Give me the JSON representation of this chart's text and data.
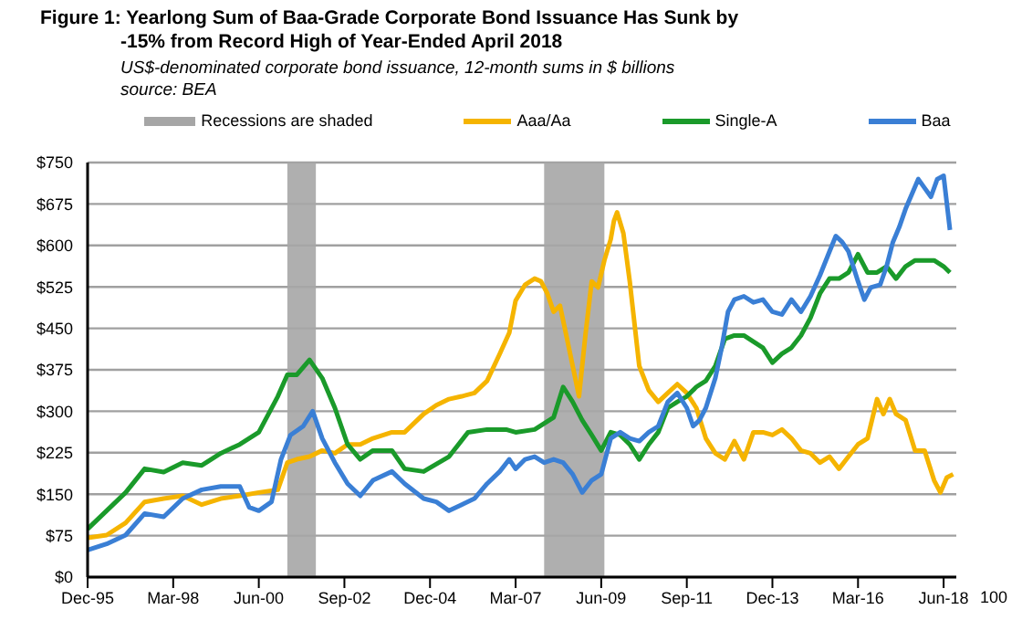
{
  "chart_data": {
    "type": "line",
    "title": "Figure 1: Yearlong Sum of Baa-Grade Corporate Bond Issuance Has Sunk by -15% from Record High of Year-Ended April 2018",
    "subtitle": "US$-denominated corporate bond issuance, 12-month sums in $ billions",
    "annotations": [
      "source: BEA",
      "100"
    ],
    "xlim": [
      "1995-12",
      "2018-10"
    ],
    "xticks": [
      {
        "value": "1995-12",
        "label": "Dec-95"
      },
      {
        "value": "1998-03",
        "label": "Mar-98"
      },
      {
        "value": "2000-06",
        "label": "Jun-00"
      },
      {
        "value": "2002-09",
        "label": "Sep-02"
      },
      {
        "value": "2004-12",
        "label": "Dec-04"
      },
      {
        "value": "2007-03",
        "label": "Mar-07"
      },
      {
        "value": "2009-06",
        "label": "Jun-09"
      },
      {
        "value": "2011-09",
        "label": "Sep-11"
      },
      {
        "value": "2013-12",
        "label": "Dec-13"
      },
      {
        "value": "2016-03",
        "label": "Mar-16"
      },
      {
        "value": "2018-06",
        "label": "Jun-18"
      }
    ],
    "ylim": [
      0,
      750
    ],
    "yticks": [
      {
        "value": 0,
        "label": "$0"
      },
      {
        "value": 75,
        "label": "$75"
      },
      {
        "value": 150,
        "label": "$150"
      },
      {
        "value": 225,
        "label": "$225"
      },
      {
        "value": 300,
        "label": "$300"
      },
      {
        "value": 375,
        "label": "$375"
      },
      {
        "value": 450,
        "label": "$450"
      },
      {
        "value": 525,
        "label": "$525"
      },
      {
        "value": 600,
        "label": "$600"
      },
      {
        "value": 675,
        "label": "$675"
      },
      {
        "value": 750,
        "label": "$750"
      }
    ],
    "grid": "y",
    "legend": "top",
    "marker": "none",
    "line_style": "solid",
    "bands": [
      {
        "axis": "x",
        "from": "2001-03",
        "to": "2001-12",
        "label": "Recessions are shaded",
        "color": "#a6a6a6"
      },
      {
        "axis": "x",
        "from": "2007-12",
        "to": "2009-07",
        "color": "#a6a6a6"
      }
    ],
    "series": [
      {
        "name": "Aaa/Aa",
        "color": "#f5b400",
        "x": [
          "1995-12",
          "1996-06",
          "1996-12",
          "1997-06",
          "1997-12",
          "1998-06",
          "1998-12",
          "1999-06",
          "1999-12",
          "2000-06",
          "2000-12",
          "2001-03",
          "2001-06",
          "2001-10",
          "2002-02",
          "2002-06",
          "2002-10",
          "2003-02",
          "2003-06",
          "2003-12",
          "2004-04",
          "2004-10",
          "2005-02",
          "2005-06",
          "2005-10",
          "2006-02",
          "2006-06",
          "2006-10",
          "2007-01",
          "2007-03",
          "2007-06",
          "2007-09",
          "2007-11",
          "2008-01",
          "2008-03",
          "2008-05",
          "2008-07",
          "2008-09",
          "2008-11",
          "2009-01",
          "2009-03",
          "2009-05",
          "2009-07",
          "2009-09",
          "2009-10",
          "2009-11",
          "2010-01",
          "2010-03",
          "2010-06",
          "2010-09",
          "2010-12",
          "2011-03",
          "2011-06",
          "2011-09",
          "2011-12",
          "2012-03",
          "2012-06",
          "2012-09",
          "2012-12",
          "2013-03",
          "2013-06",
          "2013-09",
          "2013-12",
          "2014-03",
          "2014-06",
          "2014-09",
          "2014-12",
          "2015-03",
          "2015-06",
          "2015-09",
          "2015-12",
          "2016-03",
          "2016-06",
          "2016-09",
          "2016-11",
          "2017-01",
          "2017-03",
          "2017-06",
          "2017-09",
          "2017-12",
          "2018-03",
          "2018-05",
          "2018-07",
          "2018-09"
        ],
        "values": [
          71,
          76,
          98,
          136,
          142,
          147,
          131,
          142,
          147,
          153,
          158,
          207,
          213,
          218,
          229,
          224,
          240,
          240,
          251,
          262,
          262,
          295,
          311,
          322,
          327,
          333,
          355,
          404,
          442,
          500,
          529,
          540,
          535,
          513,
          480,
          491,
          437,
          382,
          327,
          437,
          535,
          524,
          573,
          611,
          644,
          660,
          622,
          535,
          382,
          338,
          317,
          333,
          349,
          333,
          306,
          251,
          224,
          213,
          246,
          213,
          262,
          262,
          257,
          267,
          251,
          229,
          224,
          207,
          218,
          196,
          218,
          240,
          251,
          322,
          295,
          322,
          295,
          284,
          229,
          229,
          175,
          153,
          180,
          186
        ]
      },
      {
        "name": "Single-A",
        "color": "#1a9a2a",
        "x": [
          "1995-12",
          "1996-06",
          "1996-12",
          "1997-06",
          "1997-12",
          "1998-06",
          "1998-12",
          "1999-06",
          "1999-12",
          "2000-06",
          "2000-12",
          "2001-03",
          "2001-06",
          "2001-10",
          "2002-02",
          "2002-06",
          "2002-10",
          "2003-02",
          "2003-06",
          "2003-12",
          "2004-04",
          "2004-10",
          "2005-06",
          "2005-12",
          "2006-06",
          "2006-12",
          "2007-03",
          "2007-09",
          "2008-03",
          "2008-06",
          "2008-09",
          "2008-12",
          "2009-03",
          "2009-06",
          "2009-09",
          "2009-12",
          "2010-03",
          "2010-06",
          "2010-09",
          "2010-12",
          "2011-03",
          "2011-06",
          "2011-09",
          "2011-12",
          "2012-03",
          "2012-06",
          "2012-09",
          "2012-12",
          "2013-03",
          "2013-06",
          "2013-09",
          "2013-12",
          "2014-03",
          "2014-06",
          "2014-09",
          "2014-12",
          "2015-03",
          "2015-06",
          "2015-09",
          "2015-12",
          "2016-03",
          "2016-06",
          "2016-09",
          "2016-12",
          "2017-03",
          "2017-06",
          "2017-09",
          "2017-12",
          "2018-03",
          "2018-06",
          "2018-08"
        ],
        "values": [
          87,
          120,
          153,
          196,
          190,
          207,
          202,
          224,
          240,
          262,
          327,
          366,
          366,
          393,
          360,
          306,
          240,
          213,
          229,
          229,
          196,
          191,
          218,
          262,
          267,
          267,
          262,
          267,
          289,
          344,
          317,
          284,
          257,
          229,
          262,
          257,
          240,
          213,
          240,
          262,
          306,
          317,
          327,
          344,
          355,
          382,
          431,
          437,
          437,
          426,
          415,
          388,
          404,
          415,
          437,
          469,
          513,
          540,
          540,
          551,
          584,
          551,
          551,
          562,
          540,
          562,
          573,
          573,
          573,
          562,
          551
        ]
      },
      {
        "name": "Baa",
        "color": "#3a7fd5",
        "x": [
          "1995-12",
          "1996-06",
          "1996-12",
          "1997-06",
          "1997-12",
          "1998-06",
          "1998-12",
          "1999-06",
          "1999-12",
          "2000-03",
          "2000-06",
          "2000-10",
          "2001-01",
          "2001-04",
          "2001-08",
          "2001-11",
          "2002-02",
          "2002-06",
          "2002-10",
          "2003-02",
          "2003-06",
          "2003-12",
          "2004-04",
          "2004-10",
          "2005-02",
          "2005-06",
          "2005-10",
          "2006-02",
          "2006-06",
          "2006-10",
          "2007-01",
          "2007-03",
          "2007-06",
          "2007-09",
          "2007-12",
          "2008-03",
          "2008-06",
          "2008-09",
          "2008-12",
          "2009-03",
          "2009-06",
          "2009-09",
          "2009-12",
          "2010-03",
          "2010-06",
          "2010-09",
          "2010-12",
          "2011-03",
          "2011-06",
          "2011-09",
          "2011-11",
          "2012-01",
          "2012-03",
          "2012-06",
          "2012-08",
          "2012-10",
          "2012-12",
          "2013-03",
          "2013-06",
          "2013-09",
          "2013-12",
          "2014-03",
          "2014-06",
          "2014-09",
          "2014-12",
          "2015-03",
          "2015-06",
          "2015-08",
          "2015-10",
          "2015-12",
          "2016-03",
          "2016-05",
          "2016-07",
          "2016-10",
          "2016-12",
          "2017-02",
          "2017-04",
          "2017-06",
          "2017-08",
          "2017-10",
          "2017-12",
          "2018-02",
          "2018-04",
          "2018-06",
          "2018-07",
          "2018-08"
        ],
        "values": [
          49,
          60,
          76,
          115,
          109,
          142,
          158,
          164,
          164,
          126,
          120,
          136,
          213,
          257,
          273,
          300,
          251,
          207,
          169,
          147,
          175,
          191,
          169,
          142,
          136,
          120,
          131,
          142,
          169,
          191,
          213,
          196,
          213,
          218,
          207,
          213,
          207,
          186,
          153,
          175,
          186,
          251,
          262,
          251,
          246,
          262,
          273,
          317,
          333,
          306,
          273,
          284,
          306,
          360,
          415,
          480,
          502,
          508,
          497,
          502,
          480,
          475,
          502,
          480,
          508,
          546,
          589,
          617,
          606,
          589,
          535,
          502,
          524,
          529,
          562,
          606,
          633,
          666,
          693,
          720,
          704,
          688,
          720,
          726,
          677,
          628
        ]
      }
    ]
  }
}
